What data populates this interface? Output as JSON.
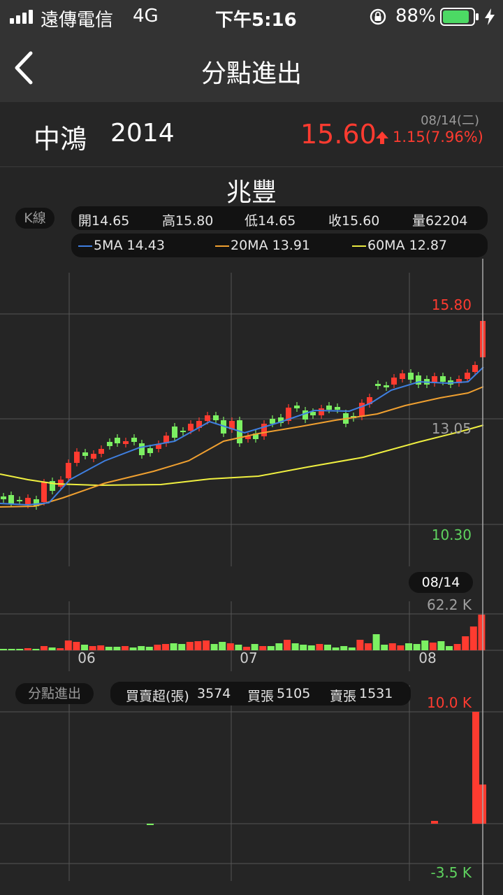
{
  "status_bar": {
    "carrier": "遠傳電信",
    "network": "4G",
    "time": "下午5:16",
    "battery_percent": "88%",
    "battery_level": 0.88
  },
  "nav": {
    "title": "分點進出"
  },
  "stock": {
    "name": "中鴻",
    "code": "2014",
    "date": "08/14(二)",
    "price": "15.60",
    "change": "1.15(7.96%)"
  },
  "broker": {
    "name": "兆豐"
  },
  "kline": {
    "tag": "K線",
    "ohlcv": {
      "open": "開14.65",
      "high": "高15.80",
      "low": "低14.65",
      "close": "收15.60",
      "volume": "量62204"
    },
    "ma": {
      "ma5": "5MA 14.43",
      "ma20": "20MA 13.91",
      "ma60": "60MA 12.87"
    },
    "axis": {
      "top": "15.80",
      "mid": "13.05",
      "bottom": "10.30"
    },
    "date_marker": "08/14"
  },
  "volume": {
    "max_label": "62.2 K",
    "months": [
      "06",
      "07",
      "08"
    ]
  },
  "flow": {
    "tag": "分點進出",
    "net_label": "買賣超(張)",
    "net_value": "3574",
    "buy_label": "買張",
    "buy_value": "5105",
    "sell_label": "賣張",
    "sell_value": "1531",
    "axis_top": "10.0 K",
    "axis_bottom": "-3.5 K"
  },
  "colors": {
    "up": "#ff3b30",
    "down": "#7cf062",
    "ma5": "#3f7fe0",
    "ma20": "#f0a030",
    "ma60": "#f0f040"
  },
  "chart_data": {
    "type": "candlestick",
    "ylim": [
      10.3,
      15.8
    ],
    "price_ticks": [
      15.8,
      13.05,
      10.3
    ],
    "volume_max": 62.2,
    "flow_ylim": [
      -3.5,
      10.0
    ]
  }
}
